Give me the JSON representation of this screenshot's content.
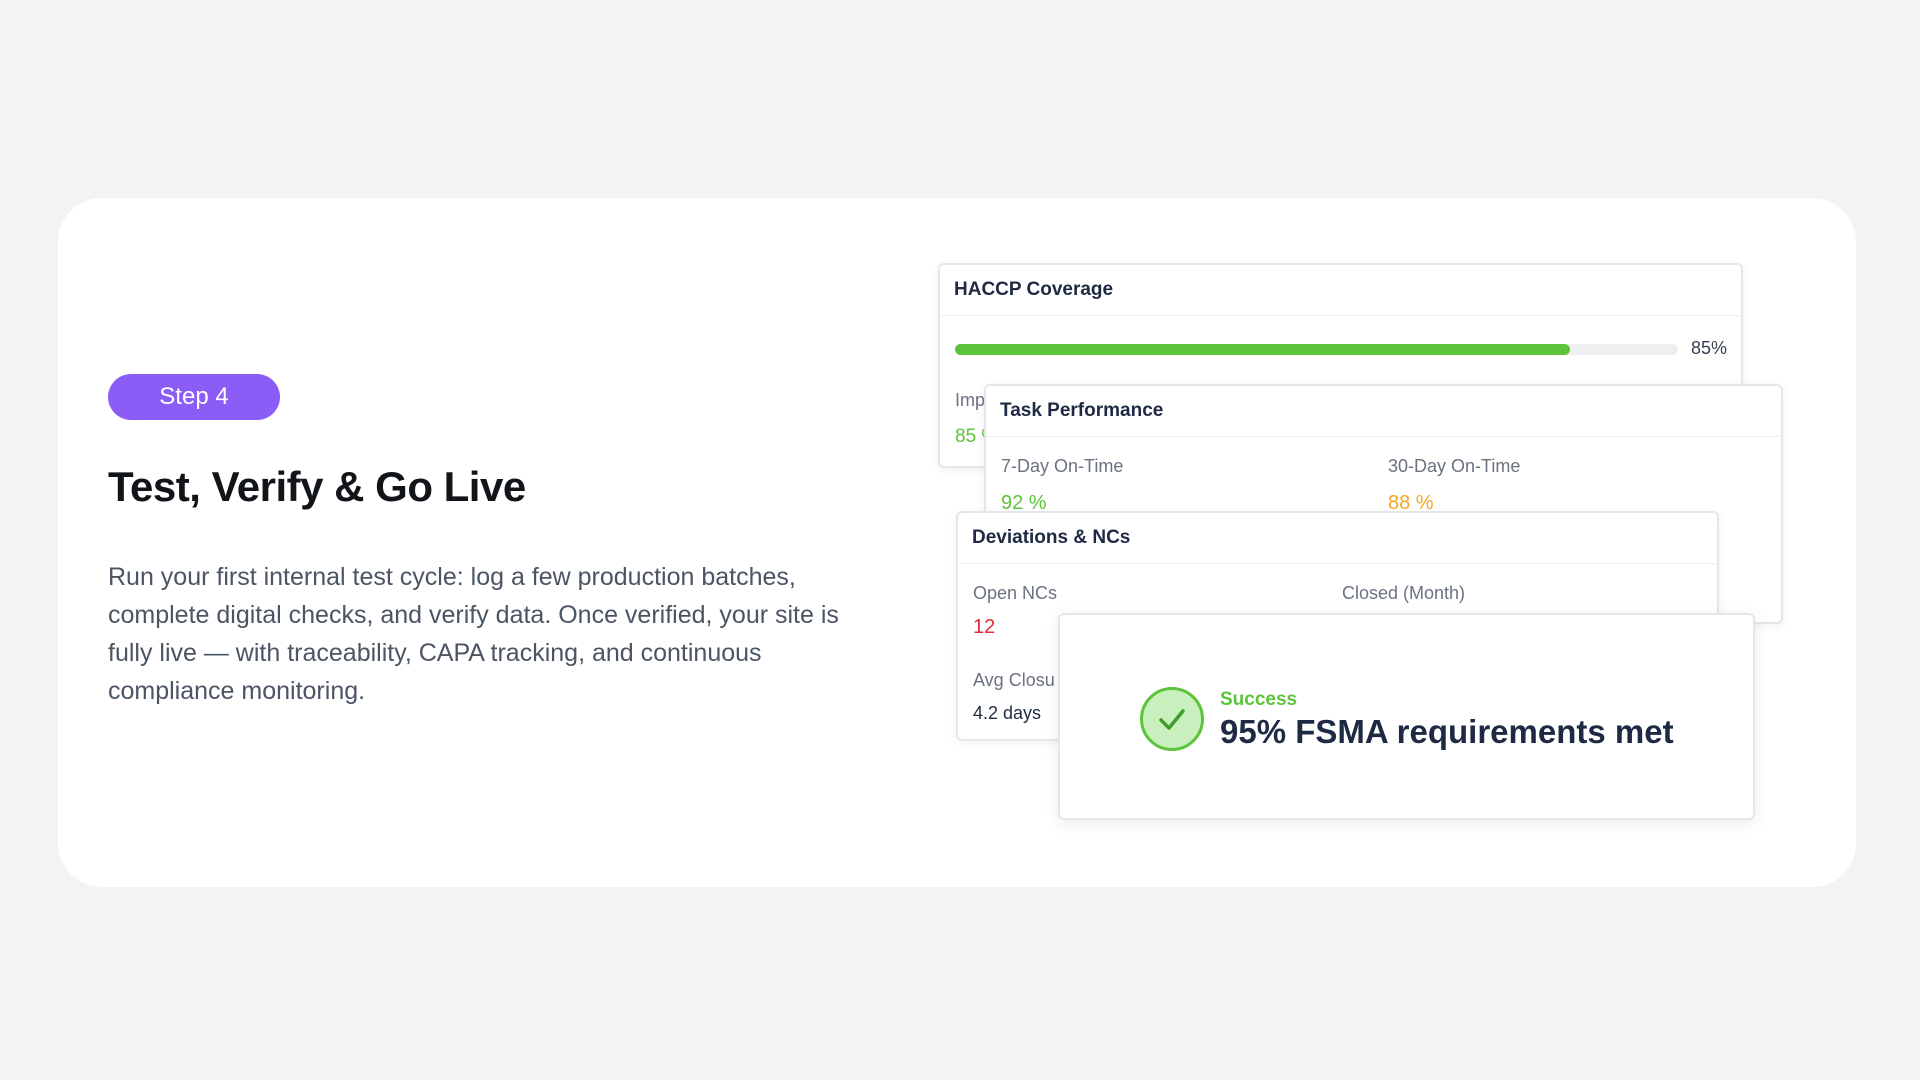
{
  "step": {
    "label": "Step 4"
  },
  "headline": "Test, Verify & Go Live",
  "description": "Run your first internal test cycle: log a few production batches, complete digital checks, and verify data. Once verified, your site is fully live — with traceability, CAPA tracking, and continuous compliance monitoring.",
  "colors": {
    "accent_purple": "#8b5cf6",
    "success_green": "#5cc43a",
    "warning_orange": "#f5a623",
    "danger_red": "#e02d3c",
    "navy": "#1e2a44"
  },
  "haccp": {
    "title": "HACCP Coverage",
    "progress": 0.85,
    "percent_text": "85%",
    "sub_label": "Imp",
    "sub_value": "85 %"
  },
  "task": {
    "title": "Task Performance",
    "stats": [
      {
        "label": "7-Day On-Time",
        "value": "92 %"
      },
      {
        "label": "30-Day On-Time",
        "value": "88 %"
      }
    ]
  },
  "deviations": {
    "title": "Deviations & NCs",
    "open_label": "Open NCs",
    "open_value": "12",
    "closed_label": "Closed (Month)",
    "avg_label": "Avg Closu",
    "avg_value": "4.2 days"
  },
  "success": {
    "icon": "check-circle-icon",
    "label": "Success",
    "message": "95% FSMA requirements met"
  }
}
